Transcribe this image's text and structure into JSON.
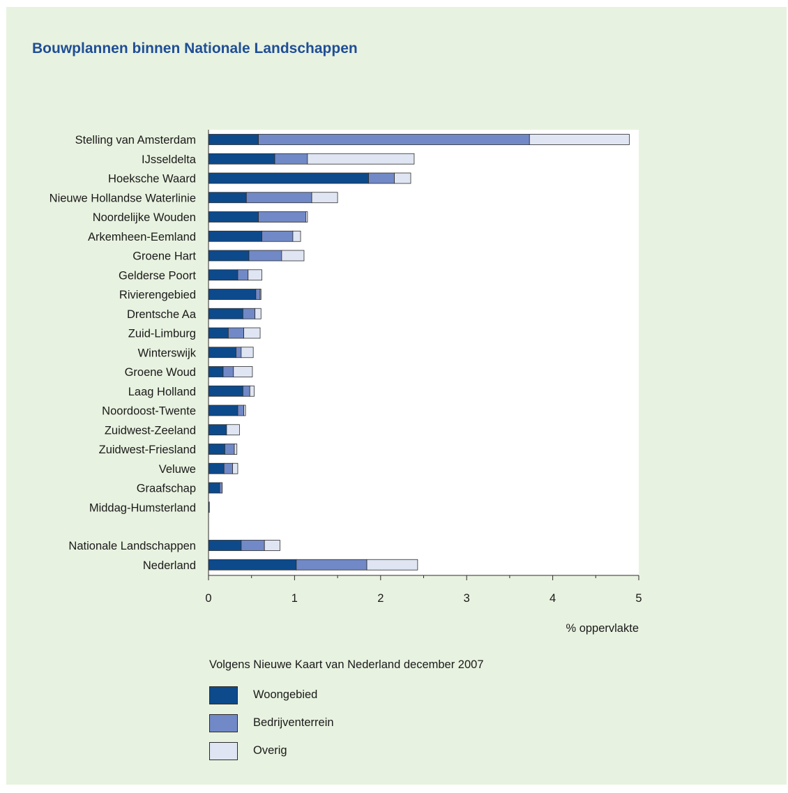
{
  "title": "Bouwplannen binnen Nationale Landschappen",
  "colors": {
    "woongebied": "#0d4a8c",
    "bedrijventerrein": "#7189c6",
    "overig": "#dfe5f2",
    "background": "#e8f2e0"
  },
  "chart_data": {
    "type": "bar",
    "orientation": "horizontal",
    "stacked": true,
    "title": "Bouwplannen binnen Nationale Landschappen",
    "xlabel": "% oppervlakte",
    "xlim": [
      0,
      5
    ],
    "xticks": [
      "0",
      "1",
      "2",
      "3",
      "4",
      "5"
    ],
    "categories": [
      "Stelling van Amsterdam",
      "IJsseldelta",
      "Hoeksche Waard",
      "Nieuwe Hollandse Waterlinie",
      "Noordelijke Wouden",
      "Arkemheen-Eemland",
      "Groene Hart",
      "Gelderse Poort",
      "Rivierengebied",
      "Drentsche Aa",
      "Zuid-Limburg",
      "Winterswijk",
      "Groene Woud",
      "Laag Holland",
      "Noordoost-Twente",
      "Zuidwest-Zeeland",
      "Zuidwest-Friesland",
      "Veluwe",
      "Graafschap",
      "Middag-Humsterland",
      "Nationale Landschappen",
      "Nederland"
    ],
    "group_gap_before_index": 20,
    "series": [
      {
        "name": "Woongebied",
        "values": [
          0.58,
          0.77,
          1.86,
          0.44,
          0.58,
          0.62,
          0.47,
          0.34,
          0.55,
          0.4,
          0.23,
          0.32,
          0.17,
          0.4,
          0.34,
          0.21,
          0.19,
          0.18,
          0.13,
          0.01,
          0.38,
          1.02
        ]
      },
      {
        "name": "Bedrijventerrein",
        "values": [
          3.15,
          0.38,
          0.3,
          0.76,
          0.55,
          0.36,
          0.38,
          0.12,
          0.05,
          0.14,
          0.18,
          0.06,
          0.12,
          0.08,
          0.07,
          0.0,
          0.11,
          0.1,
          0.03,
          0.0,
          0.27,
          0.82
        ]
      },
      {
        "name": "Overig",
        "values": [
          1.16,
          1.24,
          0.19,
          0.3,
          0.02,
          0.09,
          0.26,
          0.16,
          0.01,
          0.07,
          0.19,
          0.14,
          0.22,
          0.05,
          0.02,
          0.15,
          0.03,
          0.06,
          0.0,
          0.0,
          0.18,
          0.59
        ]
      }
    ],
    "legend": {
      "title": "Volgens Nieuwe Kaart van Nederland december 2007",
      "placement": "bottom",
      "items": [
        "Woongebied",
        "Bedrijventerrein",
        "Overig"
      ]
    }
  }
}
